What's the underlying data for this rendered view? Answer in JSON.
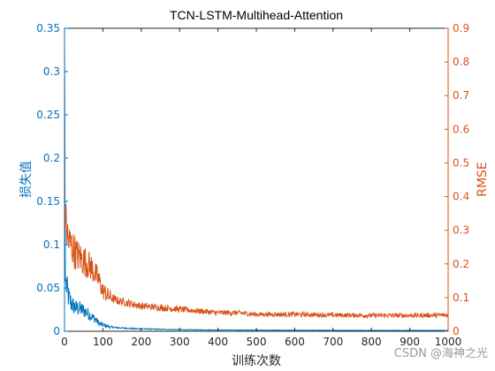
{
  "chart_data": {
    "type": "line",
    "title": "TCN-LSTM-Multihead-Attention",
    "xlabel": "训练次数",
    "ylabel_left": "损失值",
    "ylabel_right": "RMSE",
    "xlim": [
      0,
      1000
    ],
    "ylim_left": [
      0,
      0.35
    ],
    "ylim_right": [
      0,
      0.9
    ],
    "x_ticks": [
      "0",
      "100",
      "200",
      "300",
      "400",
      "500",
      "600",
      "700",
      "800",
      "900",
      "1000"
    ],
    "y_left_ticks": [
      "0",
      "0.05",
      "0.1",
      "0.15",
      "0.2",
      "0.25",
      "0.3",
      "0.35"
    ],
    "y_right_ticks": [
      "0",
      "0.1",
      "0.2",
      "0.3",
      "0.4",
      "0.5",
      "0.6",
      "0.7",
      "0.8",
      "0.9"
    ],
    "grid": false,
    "series": [
      {
        "axis": "left",
        "color": "#0072BD",
        "x": [
          0,
          2,
          5,
          10,
          20,
          30,
          40,
          50,
          60,
          70,
          80,
          90,
          100,
          120,
          140,
          160,
          180,
          200,
          250,
          300,
          350,
          400,
          450,
          500,
          600,
          700,
          800,
          900,
          1000
        ],
        "y": [
          0.33,
          0.06,
          0.052,
          0.04,
          0.03,
          0.027,
          0.026,
          0.024,
          0.021,
          0.017,
          0.014,
          0.009,
          0.007,
          0.005,
          0.004,
          0.0035,
          0.003,
          0.0028,
          0.0022,
          0.0018,
          0.0016,
          0.0015,
          0.0014,
          0.0013,
          0.0012,
          0.0011,
          0.001,
          0.001,
          0.001
        ]
      },
      {
        "axis": "right",
        "color": "#D95319",
        "x": [
          0,
          1,
          3,
          5,
          10,
          20,
          30,
          40,
          50,
          60,
          70,
          80,
          90,
          100,
          120,
          140,
          160,
          180,
          200,
          250,
          300,
          350,
          400,
          450,
          500,
          550,
          600,
          700,
          800,
          900,
          1000
        ],
        "y": [
          0.85,
          0.3,
          0.33,
          0.3,
          0.27,
          0.25,
          0.23,
          0.22,
          0.21,
          0.2,
          0.19,
          0.17,
          0.15,
          0.12,
          0.1,
          0.09,
          0.085,
          0.08,
          0.075,
          0.07,
          0.065,
          0.06,
          0.055,
          0.055,
          0.05,
          0.05,
          0.05,
          0.048,
          0.047,
          0.047,
          0.048
        ]
      }
    ]
  },
  "watermark": "CSDN @海神之光"
}
